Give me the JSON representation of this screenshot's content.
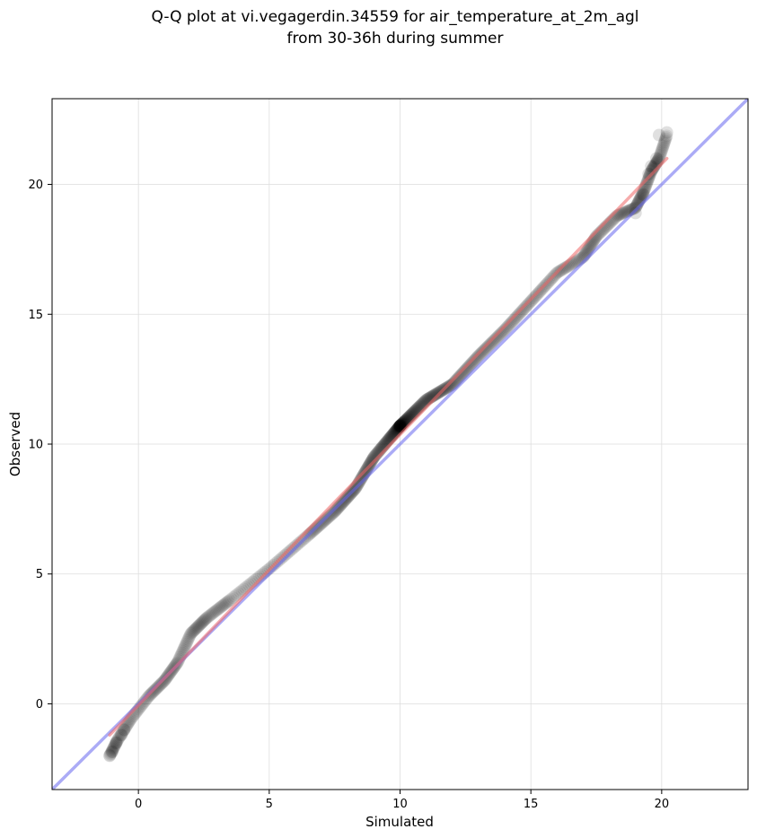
{
  "chart_data": {
    "type": "scatter",
    "title_lines": [
      "Q-Q plot at vi.vegagerdin.34559 for air_temperature_at_2m_agl",
      "from 30-36h during summer"
    ],
    "xlabel": "Simulated",
    "ylabel": "Observed",
    "xlim": [
      -3.3,
      23.3
    ],
    "ylim": [
      -3.3,
      23.3
    ],
    "x_ticks": [
      0,
      5,
      10,
      15,
      20
    ],
    "y_ticks": [
      0,
      5,
      10,
      15,
      20
    ],
    "grid": true,
    "colors": {
      "points": "#000000",
      "identity_line": "#6666ee",
      "fit_line": "#ee6666"
    },
    "quantile_knots": [
      [
        -1.1,
        -2.0
      ],
      [
        -0.8,
        -1.4
      ],
      [
        -0.3,
        -0.6
      ],
      [
        0.4,
        0.3
      ],
      [
        1.0,
        0.9
      ],
      [
        1.5,
        1.6
      ],
      [
        2.0,
        2.7
      ],
      [
        2.6,
        3.3
      ],
      [
        3.5,
        4.0
      ],
      [
        5.0,
        5.2
      ],
      [
        6.5,
        6.5
      ],
      [
        7.5,
        7.4
      ],
      [
        8.3,
        8.3
      ],
      [
        9.0,
        9.5
      ],
      [
        10.0,
        10.7
      ],
      [
        11.0,
        11.7
      ],
      [
        12.0,
        12.3
      ],
      [
        13.0,
        13.4
      ],
      [
        14.0,
        14.4
      ],
      [
        15.0,
        15.5
      ],
      [
        16.0,
        16.6
      ],
      [
        17.0,
        17.2
      ],
      [
        17.5,
        18.0
      ],
      [
        18.3,
        18.8
      ],
      [
        19.0,
        19.1
      ],
      [
        19.3,
        19.7
      ],
      [
        19.6,
        20.5
      ],
      [
        19.9,
        21.0
      ],
      [
        20.2,
        21.9
      ]
    ],
    "extreme_points": [
      [
        -1.1,
        -2.0
      ],
      [
        -1.0,
        -1.85
      ],
      [
        -0.85,
        -1.5
      ],
      [
        -0.65,
        -1.2
      ],
      [
        -0.55,
        -1.0
      ],
      [
        19.0,
        18.9
      ],
      [
        19.3,
        19.6
      ],
      [
        19.5,
        20.4
      ],
      [
        19.6,
        20.7
      ],
      [
        19.8,
        21.0
      ],
      [
        19.9,
        21.9
      ],
      [
        20.2,
        22.0
      ]
    ],
    "identity_line": {
      "from": [
        -3.3,
        -3.3
      ],
      "to": [
        23.3,
        23.3
      ]
    },
    "fit_line": {
      "from": [
        -1.1,
        -1.2
      ],
      "to": [
        20.2,
        21.0
      ]
    },
    "n_points": 700
  }
}
